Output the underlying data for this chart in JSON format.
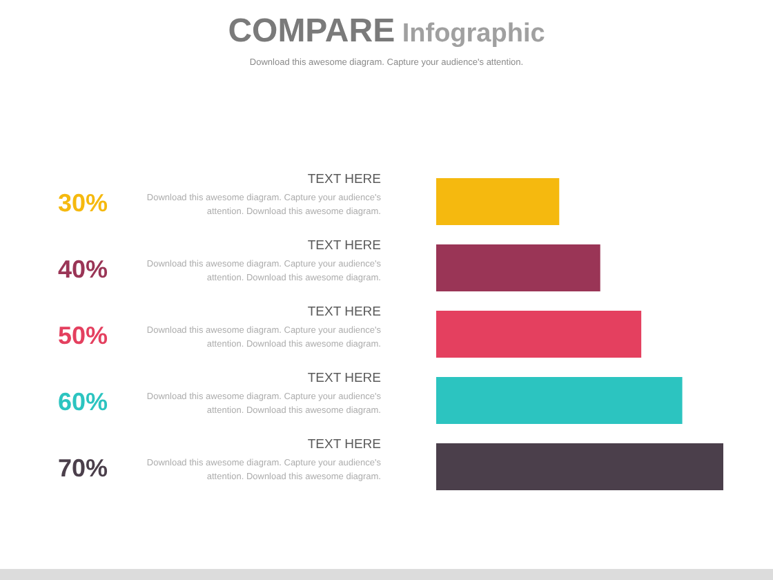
{
  "chart_data": {
    "type": "bar",
    "orientation": "horizontal",
    "title": "COMPARE Infographic",
    "subtitle": "Download this awesome diagram. Capture your audience's attention.",
    "categories": [
      "TEXT HERE",
      "TEXT HERE",
      "TEXT HERE",
      "TEXT HERE",
      "TEXT HERE"
    ],
    "values": [
      30,
      40,
      50,
      60,
      70
    ],
    "colors": [
      "#f5b90f",
      "#9a3556",
      "#e4405f",
      "#2cc4c0",
      "#4b3f4b"
    ],
    "value_labels": [
      "30%",
      "40%",
      "50%",
      "60%",
      "70%"
    ],
    "annotations": [
      "Download this awesome diagram. Capture your audience's attention. Download this awesome diagram.",
      "Download this awesome diagram. Capture your audience's attention. Download this awesome diagram.",
      "Download this awesome diagram. Capture your audience's attention. Download this awesome diagram.",
      "Download this awesome diagram. Capture your audience's attention. Download this awesome diagram.",
      "Download this awesome diagram. Capture your audience's attention. Download this awesome diagram."
    ],
    "tick_labels": "y",
    "grid": false,
    "legend": false
  }
}
